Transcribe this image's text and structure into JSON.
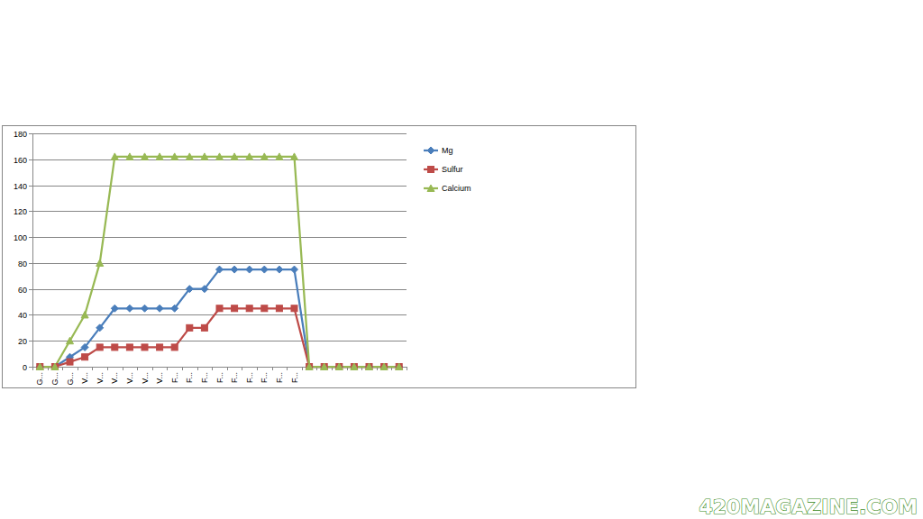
{
  "chart_data": {
    "type": "line",
    "categories": [
      "G...",
      "G...",
      "G...",
      "V...",
      "V...",
      "V...",
      "V...",
      "V...",
      "V...",
      "F...",
      "F...",
      "F...",
      "F...",
      "F...",
      "F...",
      "F...",
      "F...",
      "F...",
      null,
      null,
      null,
      null,
      null,
      null,
      null
    ],
    "series": [
      {
        "name": "Mg",
        "color": "#4a7ebb",
        "marker": "diamond",
        "values": [
          0,
          0,
          7.5,
          15,
          30,
          45,
          45,
          45,
          45,
          45,
          60,
          60,
          75,
          75,
          75,
          75,
          75,
          75,
          0,
          0,
          0,
          0,
          0,
          0,
          0
        ]
      },
      {
        "name": "Sulfur",
        "color": "#be4b48",
        "marker": "square",
        "values": [
          0,
          0,
          3.75,
          7.5,
          15,
          15,
          15,
          15,
          15,
          15,
          30,
          30,
          45,
          45,
          45,
          45,
          45,
          45,
          0,
          0,
          0,
          0,
          0,
          0,
          0
        ]
      },
      {
        "name": "Calcium",
        "color": "#98b954",
        "marker": "triangle",
        "values": [
          0,
          0,
          20,
          40,
          80,
          162,
          162,
          162,
          162,
          162,
          162,
          162,
          162,
          162,
          162,
          162,
          162,
          162,
          0,
          0,
          0,
          0,
          0,
          0,
          0
        ]
      }
    ],
    "ylim": [
      0,
      180
    ],
    "yticks": [
      0,
      20,
      40,
      60,
      80,
      100,
      120,
      140,
      160,
      180
    ],
    "grid": true,
    "legend": "right"
  },
  "watermark": "420MAGAZINE.COM"
}
